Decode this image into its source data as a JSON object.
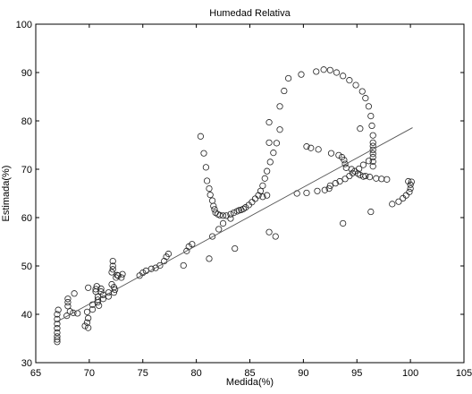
{
  "chart_data": {
    "type": "scatter",
    "title": "Humedad Relativa",
    "xlabel": "Medida(%)",
    "ylabel": "Estimada(%)",
    "xlim": [
      65,
      105
    ],
    "ylim": [
      30,
      100
    ],
    "xticks": [
      65,
      70,
      75,
      80,
      85,
      90,
      95,
      100,
      105
    ],
    "yticks": [
      30,
      40,
      50,
      60,
      70,
      80,
      90,
      100
    ],
    "grid": false,
    "legend": "none",
    "marker": "open-circle",
    "line": {
      "type": "reference",
      "x": [
        67,
        100.2
      ],
      "y": [
        38.5,
        78.6
      ]
    },
    "points": [
      [
        67,
        34.3
      ],
      [
        67,
        34.8
      ],
      [
        67,
        35.4
      ],
      [
        67,
        36.2
      ],
      [
        67,
        37.1
      ],
      [
        67,
        38
      ],
      [
        67,
        39
      ],
      [
        67,
        40
      ],
      [
        67.1,
        40.9
      ],
      [
        67.9,
        39.7
      ],
      [
        68,
        41.7
      ],
      [
        68,
        42.5
      ],
      [
        68,
        43.2
      ],
      [
        68.2,
        40.6
      ],
      [
        68.5,
        40.3
      ],
      [
        68.6,
        44.3
      ],
      [
        68.9,
        40.2
      ],
      [
        69.6,
        37.6
      ],
      [
        69.8,
        38.3
      ],
      [
        69.9,
        37.2
      ],
      [
        69.9,
        39.2
      ],
      [
        69.8,
        40.5
      ],
      [
        69.9,
        45.5
      ],
      [
        70.3,
        41
      ],
      [
        70.3,
        42
      ],
      [
        70.6,
        44.7
      ],
      [
        70.6,
        45.2
      ],
      [
        70.7,
        45.8
      ],
      [
        70.8,
        43
      ],
      [
        70.8,
        43.6
      ],
      [
        70.8,
        42.5
      ],
      [
        70.9,
        41.8
      ],
      [
        71.1,
        44.7
      ],
      [
        71.1,
        45.3
      ],
      [
        71.3,
        43.2
      ],
      [
        71.3,
        44
      ],
      [
        71.8,
        43.7
      ],
      [
        71.8,
        44.5
      ],
      [
        72.1,
        46.2
      ],
      [
        72.1,
        48.7
      ],
      [
        72.2,
        49.3
      ],
      [
        72.2,
        50
      ],
      [
        72.2,
        51
      ],
      [
        72.3,
        45.6
      ],
      [
        72.4,
        45.1
      ],
      [
        72.3,
        44.5
      ],
      [
        72.5,
        47.6
      ],
      [
        72.6,
        48.1
      ],
      [
        72.7,
        48
      ],
      [
        73,
        47.6
      ],
      [
        73.1,
        48.3
      ],
      [
        74.7,
        48
      ],
      [
        75,
        48.6
      ],
      [
        75.3,
        49
      ],
      [
        75.8,
        49.4
      ],
      [
        76.2,
        49.6
      ],
      [
        76.6,
        50.1
      ],
      [
        77,
        51
      ],
      [
        77.2,
        51.9
      ],
      [
        77.4,
        52.5
      ],
      [
        78.8,
        50.1
      ],
      [
        79.1,
        53.1
      ],
      [
        79.3,
        54
      ],
      [
        79.6,
        54.5
      ],
      [
        80.4,
        76.8
      ],
      [
        80.7,
        73.3
      ],
      [
        80.9,
        70.4
      ],
      [
        81,
        67.6
      ],
      [
        81.2,
        66
      ],
      [
        81.3,
        64.7
      ],
      [
        81.5,
        63.5
      ],
      [
        81.6,
        62.4
      ],
      [
        81.7,
        61.7
      ],
      [
        81.8,
        61
      ],
      [
        82,
        60.7
      ],
      [
        82.2,
        60.5
      ],
      [
        82.5,
        60.4
      ],
      [
        82.8,
        60.4
      ],
      [
        83.2,
        60.7
      ],
      [
        83.5,
        61
      ],
      [
        83.8,
        61.3
      ],
      [
        84,
        61.5
      ],
      [
        84.2,
        61.6
      ],
      [
        84.4,
        61.8
      ],
      [
        84.6,
        62.1
      ],
      [
        84.9,
        62.6
      ],
      [
        85.2,
        63.2
      ],
      [
        85.5,
        63.9
      ],
      [
        85.8,
        64.6
      ],
      [
        86,
        65.5
      ],
      [
        86.2,
        66.6
      ],
      [
        86.4,
        68.1
      ],
      [
        86.6,
        69.6
      ],
      [
        86.9,
        71.5
      ],
      [
        87.2,
        73.4
      ],
      [
        87.5,
        75.4
      ],
      [
        87.8,
        78.2
      ],
      [
        81.2,
        51.5
      ],
      [
        81.5,
        56.1
      ],
      [
        82.1,
        57.6
      ],
      [
        82.5,
        58.8
      ],
      [
        83.2,
        59.8
      ],
      [
        83.6,
        53.6
      ],
      [
        86.8,
        57
      ],
      [
        87.4,
        56.1
      ],
      [
        86.2,
        64.3
      ],
      [
        86.6,
        64.6
      ],
      [
        86.8,
        75.5
      ],
      [
        86.8,
        79.7
      ],
      [
        87.8,
        83
      ],
      [
        88.2,
        86.2
      ],
      [
        88.6,
        88.8
      ],
      [
        89.4,
        65
      ],
      [
        90.3,
        65.1
      ],
      [
        91.3,
        65.5
      ],
      [
        92,
        65.7
      ],
      [
        92.4,
        66
      ],
      [
        89.8,
        89.6
      ],
      [
        91.2,
        90.2
      ],
      [
        91.9,
        90.6
      ],
      [
        92.5,
        90.5
      ],
      [
        93.1,
        90
      ],
      [
        93.7,
        89.3
      ],
      [
        94.3,
        88.4
      ],
      [
        94.9,
        87.4
      ],
      [
        95.5,
        86.1
      ],
      [
        95.8,
        84.7
      ],
      [
        96.1,
        83
      ],
      [
        96.3,
        81
      ],
      [
        96.4,
        79
      ],
      [
        96.5,
        77
      ],
      [
        96.5,
        75.5
      ],
      [
        96.5,
        74.8
      ],
      [
        96.5,
        74
      ],
      [
        96.5,
        73.2
      ],
      [
        96.5,
        72.5
      ],
      [
        96.5,
        71.6
      ],
      [
        96.5,
        70.6
      ],
      [
        90.3,
        74.7
      ],
      [
        90.7,
        74.4
      ],
      [
        91.4,
        74.1
      ],
      [
        92.6,
        73.3
      ],
      [
        93.3,
        72.9
      ],
      [
        93.6,
        72.5
      ],
      [
        93.8,
        71.9
      ],
      [
        93.9,
        71.1
      ],
      [
        94,
        70.3
      ],
      [
        94.5,
        70
      ],
      [
        94.8,
        69.6
      ],
      [
        95.1,
        69.1
      ],
      [
        95.3,
        68.8
      ],
      [
        95.6,
        68.5
      ],
      [
        95.8,
        68.6
      ],
      [
        96.2,
        68.4
      ],
      [
        96.8,
        68.1
      ],
      [
        97.3,
        68
      ],
      [
        97.8,
        67.9
      ],
      [
        92.5,
        66.6
      ],
      [
        93,
        67.1
      ],
      [
        93.4,
        67.5
      ],
      [
        93.9,
        68
      ],
      [
        94.3,
        68.6
      ],
      [
        94.6,
        69.2
      ],
      [
        95.2,
        70.1
      ],
      [
        95.6,
        70.9
      ],
      [
        96.1,
        71.7
      ],
      [
        95.3,
        78.4
      ],
      [
        93.7,
        58.8
      ],
      [
        96.3,
        61.2
      ],
      [
        98.3,
        62.8
      ],
      [
        98.9,
        63.3
      ],
      [
        99.3,
        64
      ],
      [
        99.6,
        64.6
      ],
      [
        99.9,
        65.3
      ],
      [
        100,
        66
      ],
      [
        100,
        66.8
      ],
      [
        99.8,
        67.5
      ],
      [
        100.1,
        67.4
      ]
    ]
  }
}
